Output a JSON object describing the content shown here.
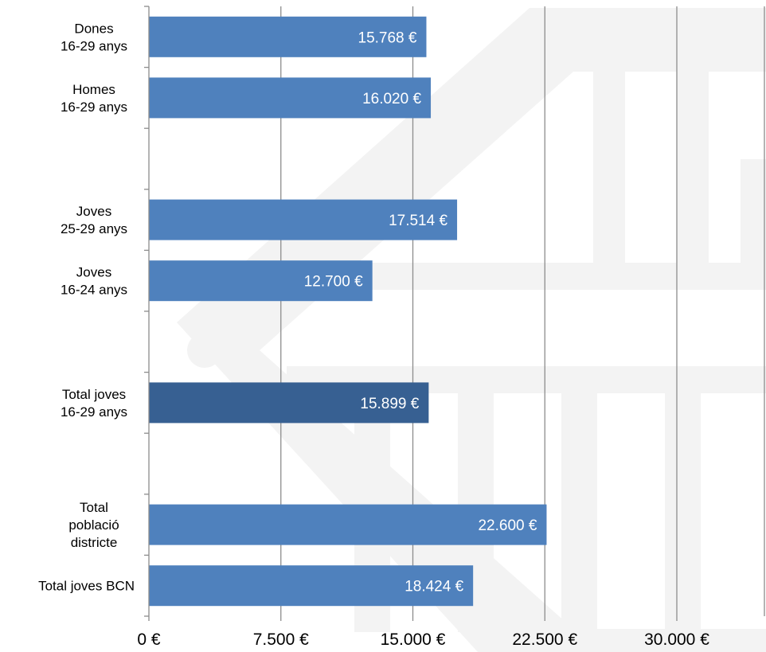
{
  "chart_data": {
    "type": "bar",
    "orientation": "horizontal",
    "categories": [
      [
        "Dones",
        "16-29 anys"
      ],
      [
        "Homes",
        "16-29 anys"
      ],
      [
        "Joves",
        "25-29 anys"
      ],
      [
        "Joves",
        "16-24 anys"
      ],
      [
        "Total joves",
        "16-29 anys"
      ],
      [
        "Total",
        "població",
        "districte"
      ],
      [
        "Total joves BCN"
      ]
    ],
    "values": [
      15768,
      16020,
      17514,
      12700,
      15899,
      22600,
      18424
    ],
    "data_labels": [
      "15.768 €",
      "16.020 €",
      "17.514 €",
      "12.700 €",
      "15.899 €",
      "22.600 €",
      "18.424 €"
    ],
    "highlighted_category_index": 4,
    "xlim": [
      0,
      30000
    ],
    "xticks": [
      0,
      7500,
      15000,
      22500,
      30000
    ],
    "xtick_labels": [
      "0 €",
      "7.500 €",
      "15.000 €",
      "22.500 €",
      "30.000 €"
    ],
    "grid": "vertical",
    "legend": "none",
    "colors": {
      "bar": "#4f81bd",
      "highlight": "#376092",
      "grid": "#8c8c8c",
      "watermark": "#f2f2f2"
    }
  }
}
